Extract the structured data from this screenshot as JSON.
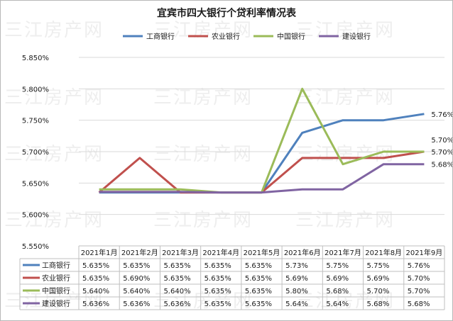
{
  "chart_data": {
    "type": "line",
    "title": "宜宾市四大银行个贷利率情况表",
    "categories": [
      "2021年1月",
      "2021年2月",
      "2021年3月",
      "2021年4月",
      "2021年5月",
      "2021年6月",
      "2021年7月",
      "2021年8月",
      "2021年9月"
    ],
    "ylim": [
      5.55,
      5.85
    ],
    "y_ticks": [
      "5.550%",
      "5.600%",
      "5.650%",
      "5.700%",
      "5.750%",
      "5.800%",
      "5.850%"
    ],
    "y_tick_values": [
      5.55,
      5.6,
      5.65,
      5.7,
      5.75,
      5.8,
      5.85
    ],
    "grid": true,
    "legend_position": "top",
    "data_table": true,
    "series": [
      {
        "name": "工商银行",
        "color": "#4f81bd",
        "values": [
          5.635,
          5.635,
          5.635,
          5.635,
          5.635,
          5.73,
          5.75,
          5.75,
          5.76
        ],
        "table_labels": [
          "5.635%",
          "5.635%",
          "5.635%",
          "5.635%",
          "5.635%",
          "5.73%",
          "5.75%",
          "5.75%",
          "5.76%"
        ]
      },
      {
        "name": "农业银行",
        "color": "#c0504d",
        "values": [
          5.635,
          5.69,
          5.635,
          5.635,
          5.635,
          5.69,
          5.69,
          5.69,
          5.7
        ],
        "table_labels": [
          "5.635%",
          "5.690%",
          "5.635%",
          "5.635%",
          "5.635%",
          "5.69%",
          "5.69%",
          "5.69%",
          "5.70%"
        ]
      },
      {
        "name": "中国银行",
        "color": "#9bbb59",
        "values": [
          5.64,
          5.64,
          5.64,
          5.635,
          5.635,
          5.8,
          5.68,
          5.7,
          5.7
        ],
        "table_labels": [
          "5.640%",
          "5.640%",
          "5.640%",
          "5.635%",
          "5.635%",
          "5.80%",
          "5.68%",
          "5.70%",
          "5.70%"
        ]
      },
      {
        "name": "建设银行",
        "color": "#8064a2",
        "values": [
          5.636,
          5.636,
          5.636,
          5.635,
          5.635,
          5.64,
          5.64,
          5.68,
          5.68
        ],
        "table_labels": [
          "5.636%",
          "5.636%",
          "5.636%",
          "5.635%",
          "5.635%",
          "5.64%",
          "5.64%",
          "5.68%",
          "5.68%"
        ]
      }
    ],
    "end_labels": [
      {
        "series": 0,
        "text": "5.76%"
      },
      {
        "series": 1,
        "text": "5.70%"
      },
      {
        "series": 2,
        "text": "5.70%"
      },
      {
        "series": 3,
        "text": "5.68%"
      }
    ]
  },
  "watermark": {
    "text": "三江房产网"
  }
}
